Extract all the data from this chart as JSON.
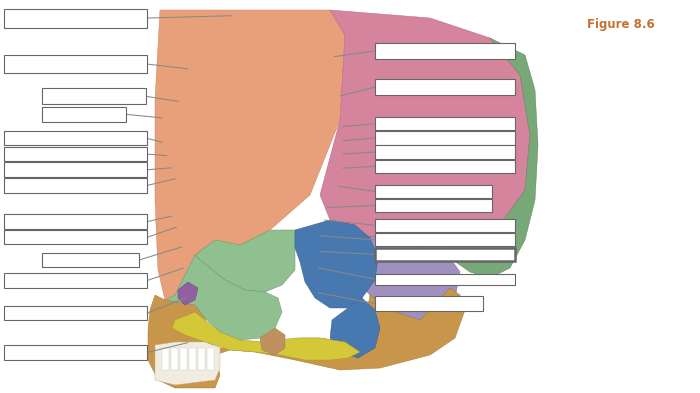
{
  "figure_label": "Figure 8.6",
  "figure_label_color": "#c87030",
  "bg": "#ffffff",
  "box_ec": "#666666",
  "line_c": "#888888",
  "left_boxes": [
    [
      0.005,
      0.93,
      0.205,
      0.048,
      0.21,
      0.954,
      0.33,
      0.96
    ],
    [
      0.005,
      0.815,
      0.205,
      0.044,
      0.21,
      0.837,
      0.268,
      0.825
    ],
    [
      0.06,
      0.735,
      0.148,
      0.04,
      0.208,
      0.755,
      0.255,
      0.742
    ],
    [
      0.06,
      0.69,
      0.12,
      0.037,
      0.18,
      0.709,
      0.232,
      0.7
    ],
    [
      0.005,
      0.63,
      0.205,
      0.037,
      0.21,
      0.648,
      0.232,
      0.638
    ],
    [
      0.005,
      0.59,
      0.205,
      0.037,
      0.21,
      0.608,
      0.238,
      0.604
    ],
    [
      0.005,
      0.55,
      0.205,
      0.037,
      0.21,
      0.568,
      0.245,
      0.573
    ],
    [
      0.005,
      0.51,
      0.205,
      0.037,
      0.21,
      0.528,
      0.25,
      0.545
    ],
    [
      0.005,
      0.418,
      0.205,
      0.037,
      0.21,
      0.436,
      0.245,
      0.45
    ],
    [
      0.005,
      0.378,
      0.205,
      0.037,
      0.21,
      0.396,
      0.252,
      0.422
    ],
    [
      0.06,
      0.32,
      0.138,
      0.037,
      0.198,
      0.338,
      0.26,
      0.372
    ],
    [
      0.005,
      0.268,
      0.205,
      0.037,
      0.21,
      0.286,
      0.262,
      0.318
    ],
    [
      0.005,
      0.185,
      0.205,
      0.037,
      0.21,
      0.203,
      0.265,
      0.242
    ],
    [
      0.005,
      0.085,
      0.205,
      0.037,
      0.21,
      0.103,
      0.268,
      0.128
    ]
  ],
  "right_boxes": [
    [
      0.535,
      0.85,
      0.2,
      0.04,
      0.535,
      0.87,
      0.478,
      0.856
    ],
    [
      0.535,
      0.758,
      0.2,
      0.04,
      0.535,
      0.778,
      0.486,
      0.756
    ],
    [
      0.535,
      0.668,
      0.2,
      0.034,
      0.535,
      0.685,
      0.49,
      0.678
    ],
    [
      0.535,
      0.632,
      0.2,
      0.034,
      0.535,
      0.649,
      0.49,
      0.642
    ],
    [
      0.535,
      0.596,
      0.2,
      0.034,
      0.535,
      0.613,
      0.49,
      0.608
    ],
    [
      0.535,
      0.56,
      0.2,
      0.034,
      0.535,
      0.577,
      0.49,
      0.572
    ],
    [
      0.535,
      0.496,
      0.168,
      0.034,
      0.535,
      0.513,
      0.484,
      0.526
    ],
    [
      0.535,
      0.46,
      0.168,
      0.034,
      0.535,
      0.477,
      0.468,
      0.472
    ],
    [
      0.535,
      0.41,
      0.2,
      0.034,
      0.535,
      0.427,
      0.464,
      0.44
    ],
    [
      0.535,
      0.373,
      0.2,
      0.034,
      0.535,
      0.39,
      0.458,
      0.4
    ],
    [
      0.535,
      0.336,
      0.2,
      0.034,
      0.535,
      0.353,
      0.458,
      0.36
    ],
    [
      0.535,
      0.276,
      0.2,
      0.028,
      0.535,
      0.29,
      0.455,
      0.318
    ],
    [
      0.535,
      0.208,
      0.155,
      0.04,
      0.535,
      0.228,
      0.455,
      0.255
    ]
  ]
}
